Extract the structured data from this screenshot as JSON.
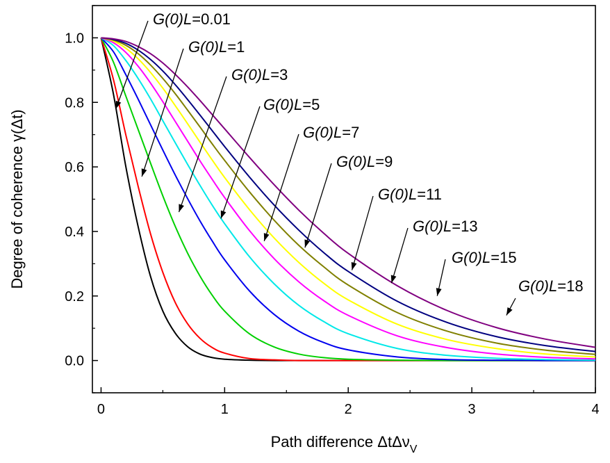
{
  "chart_data": {
    "type": "line",
    "title": "",
    "xlabel": "Path difference ΔtΔν",
    "xlabel_subscript": "V",
    "ylabel": "Degree of coherence γ(Δt)",
    "xlim": [
      -0.07,
      4
    ],
    "ylim": [
      -0.1,
      1.1
    ],
    "xticks": [
      0,
      1,
      2,
      3,
      4
    ],
    "xtick_labels": [
      "0",
      "1",
      "2",
      "3",
      "4"
    ],
    "yticks": [
      0.0,
      0.2,
      0.4,
      0.6,
      0.8,
      1.0
    ],
    "ytick_labels": [
      "0.0",
      "0.2",
      "0.4",
      "0.6",
      "0.8",
      "1.0"
    ],
    "grid": false,
    "legend": "none",
    "x": [
      0,
      0.1,
      0.2,
      0.3,
      0.4,
      0.5,
      0.6,
      0.7,
      0.8,
      0.9,
      1.0,
      1.2,
      1.4,
      1.6,
      1.8,
      2.0,
      2.4,
      2.8,
      3.2,
      3.6,
      4.0
    ],
    "series": [
      {
        "name": "G(0)L=0.01",
        "color": "#000000",
        "label_prefix": "G(0)",
        "label_italic": "L",
        "label_suffix": "=0.01",
        "values": [
          1.0,
          0.826,
          0.602,
          0.415,
          0.261,
          0.153,
          0.085,
          0.043,
          0.02,
          0.009,
          0.004,
          0.001,
          0.0,
          0.0,
          0.0,
          0.0,
          0.0,
          0.0,
          0.0,
          0.0,
          0.0
        ]
      },
      {
        "name": "G(0)L=1",
        "color": "#ff0000",
        "label_prefix": "G(0)",
        "label_italic": "L",
        "label_suffix": "=1",
        "values": [
          1.0,
          0.871,
          0.7,
          0.54,
          0.393,
          0.273,
          0.18,
          0.114,
          0.069,
          0.04,
          0.023,
          0.006,
          0.002,
          0.0,
          0.0,
          0.0,
          0.0,
          0.0,
          0.0,
          0.0,
          0.0
        ]
      },
      {
        "name": "G(0)L=3",
        "color": "#00d000",
        "label_prefix": "G(0)",
        "label_italic": "L",
        "label_suffix": "=3",
        "values": [
          1.0,
          0.925,
          0.82,
          0.716,
          0.612,
          0.51,
          0.416,
          0.333,
          0.262,
          0.202,
          0.153,
          0.083,
          0.042,
          0.02,
          0.009,
          0.004,
          0.001,
          0.0,
          0.0,
          0.0,
          0.0
        ]
      },
      {
        "name": "G(0)L=5",
        "color": "#0000ee",
        "label_prefix": "G(0)",
        "label_italic": "L",
        "label_suffix": "=5",
        "values": [
          1.0,
          0.957,
          0.886,
          0.81,
          0.731,
          0.652,
          0.575,
          0.502,
          0.433,
          0.37,
          0.312,
          0.216,
          0.143,
          0.091,
          0.056,
          0.033,
          0.011,
          0.003,
          0.001,
          0.0,
          0.0
        ]
      },
      {
        "name": "G(0)L=7",
        "color": "#00e8e8",
        "label_prefix": "G(0)",
        "label_italic": "L",
        "label_suffix": "=7",
        "values": [
          1.0,
          0.976,
          0.93,
          0.874,
          0.811,
          0.743,
          0.675,
          0.608,
          0.543,
          0.481,
          0.424,
          0.322,
          0.238,
          0.171,
          0.121,
          0.083,
          0.037,
          0.016,
          0.007,
          0.003,
          0.001
        ]
      },
      {
        "name": "G(0)L=9",
        "color": "#ff00ff",
        "label_prefix": "G(0)",
        "label_italic": "L",
        "label_suffix": "=9",
        "values": [
          1.0,
          0.985,
          0.955,
          0.912,
          0.86,
          0.802,
          0.741,
          0.68,
          0.619,
          0.561,
          0.505,
          0.403,
          0.316,
          0.244,
          0.186,
          0.14,
          0.076,
          0.04,
          0.02,
          0.01,
          0.005
        ]
      },
      {
        "name": "G(0)L=11",
        "color": "#ffff00",
        "label_prefix": "G(0)",
        "label_italic": "L",
        "label_suffix": "=11",
        "values": [
          1.0,
          0.99,
          0.968,
          0.935,
          0.893,
          0.844,
          0.79,
          0.734,
          0.677,
          0.621,
          0.567,
          0.468,
          0.38,
          0.304,
          0.24,
          0.188,
          0.112,
          0.065,
          0.037,
          0.02,
          0.011
        ]
      },
      {
        "name": "G(0)L=13",
        "color": "#808000",
        "label_prefix": "G(0)",
        "label_italic": "L",
        "label_suffix": "=13",
        "values": [
          1.0,
          0.993,
          0.977,
          0.951,
          0.916,
          0.874,
          0.827,
          0.776,
          0.724,
          0.671,
          0.62,
          0.523,
          0.435,
          0.357,
          0.291,
          0.234,
          0.148,
          0.091,
          0.054,
          0.032,
          0.019
        ]
      },
      {
        "name": "G(0)L=15",
        "color": "#000080",
        "label_prefix": "G(0)",
        "label_italic": "L",
        "label_suffix": "=15",
        "values": [
          1.0,
          0.995,
          0.983,
          0.962,
          0.933,
          0.897,
          0.855,
          0.809,
          0.761,
          0.712,
          0.663,
          0.569,
          0.482,
          0.404,
          0.335,
          0.276,
          0.183,
          0.118,
          0.074,
          0.046,
          0.028
        ]
      },
      {
        "name": "G(0)L=18",
        "color": "#800080",
        "label_prefix": "G(0)",
        "label_italic": "L",
        "label_suffix": "=18",
        "values": [
          1.0,
          0.997,
          0.989,
          0.973,
          0.951,
          0.922,
          0.887,
          0.848,
          0.806,
          0.762,
          0.718,
          0.63,
          0.545,
          0.466,
          0.395,
          0.332,
          0.231,
          0.155,
          0.102,
          0.066,
          0.041
        ]
      }
    ],
    "annotations": [
      {
        "series": 0,
        "arrow_to": [
          0.12,
          0.78
        ]
      },
      {
        "series": 1,
        "arrow_to": [
          0.33,
          0.57
        ]
      },
      {
        "series": 2,
        "arrow_to": [
          0.63,
          0.46
        ]
      },
      {
        "series": 3,
        "arrow_to": [
          0.97,
          0.44
        ]
      },
      {
        "series": 4,
        "arrow_to": [
          1.32,
          0.37
        ]
      },
      {
        "series": 5,
        "arrow_to": [
          1.65,
          0.35
        ]
      },
      {
        "series": 6,
        "arrow_to": [
          2.03,
          0.28
        ]
      },
      {
        "series": 7,
        "arrow_to": [
          2.35,
          0.24
        ]
      },
      {
        "series": 8,
        "arrow_to": [
          2.72,
          0.2
        ]
      },
      {
        "series": 9,
        "arrow_to": [
          3.28,
          0.14
        ]
      }
    ]
  }
}
